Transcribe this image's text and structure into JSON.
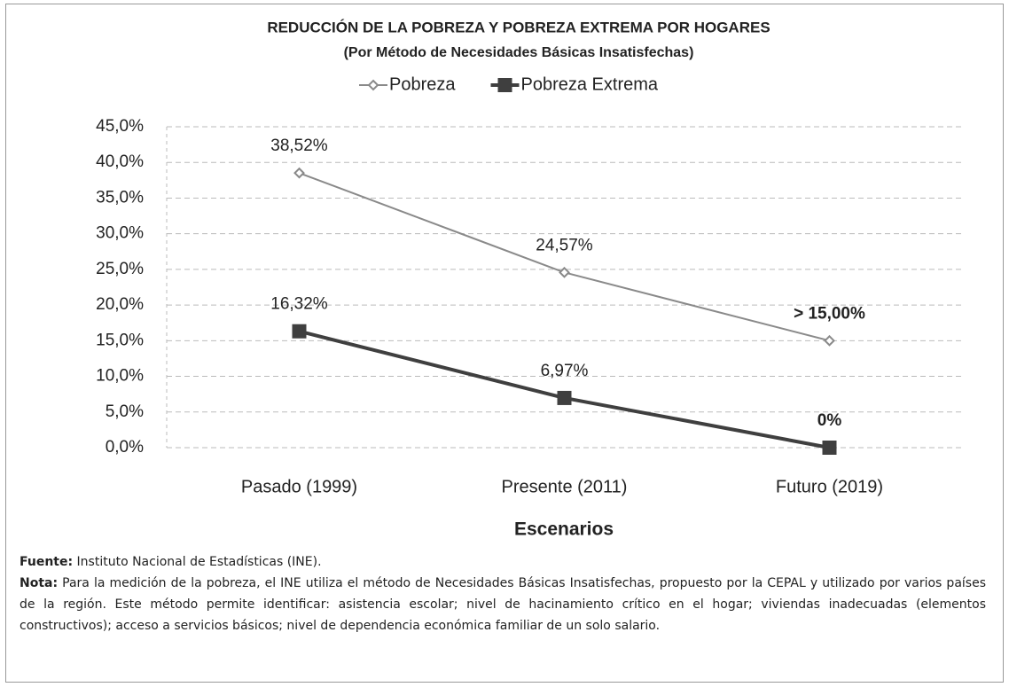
{
  "chart_data": {
    "type": "line",
    "title": "REDUCCIÓN DE LA POBREZA Y POBREZA EXTREMA POR HOGARES",
    "subtitle": "(Por Método de Necesidades Básicas Insatisfechas)",
    "x_label": "Escenarios",
    "categories": [
      "Pasado (1999)",
      "Presente (2011)",
      "Futuro (2019)"
    ],
    "series": [
      {
        "name": "Pobreza",
        "color": "#8a8a8a",
        "marker": "diamond",
        "values": [
          38.52,
          24.57,
          15.0
        ],
        "value_labels": [
          "38,52%",
          "24,57%",
          "> 15,00%"
        ]
      },
      {
        "name": "Pobreza Extrema",
        "color": "#3f3f3f",
        "marker": "square",
        "values": [
          16.32,
          6.97,
          0
        ],
        "value_labels": [
          "16,32%",
          "6,97%",
          "0%"
        ]
      }
    ],
    "ylim": [
      0,
      45
    ],
    "yticks": [
      {
        "value": 0,
        "label": "0,0%"
      },
      {
        "value": 5,
        "label": "5,0%"
      },
      {
        "value": 10,
        "label": "10,0%"
      },
      {
        "value": 15,
        "label": "15,0%"
      },
      {
        "value": 20,
        "label": "20,0%"
      },
      {
        "value": 25,
        "label": "25,0%"
      },
      {
        "value": 30,
        "label": "30,0%"
      },
      {
        "value": 35,
        "label": "35,0%"
      },
      {
        "value": 40,
        "label": "40,0%"
      },
      {
        "value": 45,
        "label": "45,0%"
      }
    ],
    "grid": true,
    "legend": "top"
  },
  "notes": [
    {
      "label": "Fuente:",
      "text": "Instituto Nacional de Estadísticas (INE)."
    },
    {
      "label": "Nota:",
      "text": "Para la medición de la pobreza, el INE utiliza el método de Necesidades Básicas Insatisfechas, propuesto por la CEPAL y utilizado por varios países de la región. Este método permite identificar: asistencia escolar; nivel de hacinamiento crítico en el hogar; viviendas inadecuadas (elementos constructivos); acceso a servicios básicos; nivel de dependencia económica familiar de un solo salario."
    }
  ]
}
